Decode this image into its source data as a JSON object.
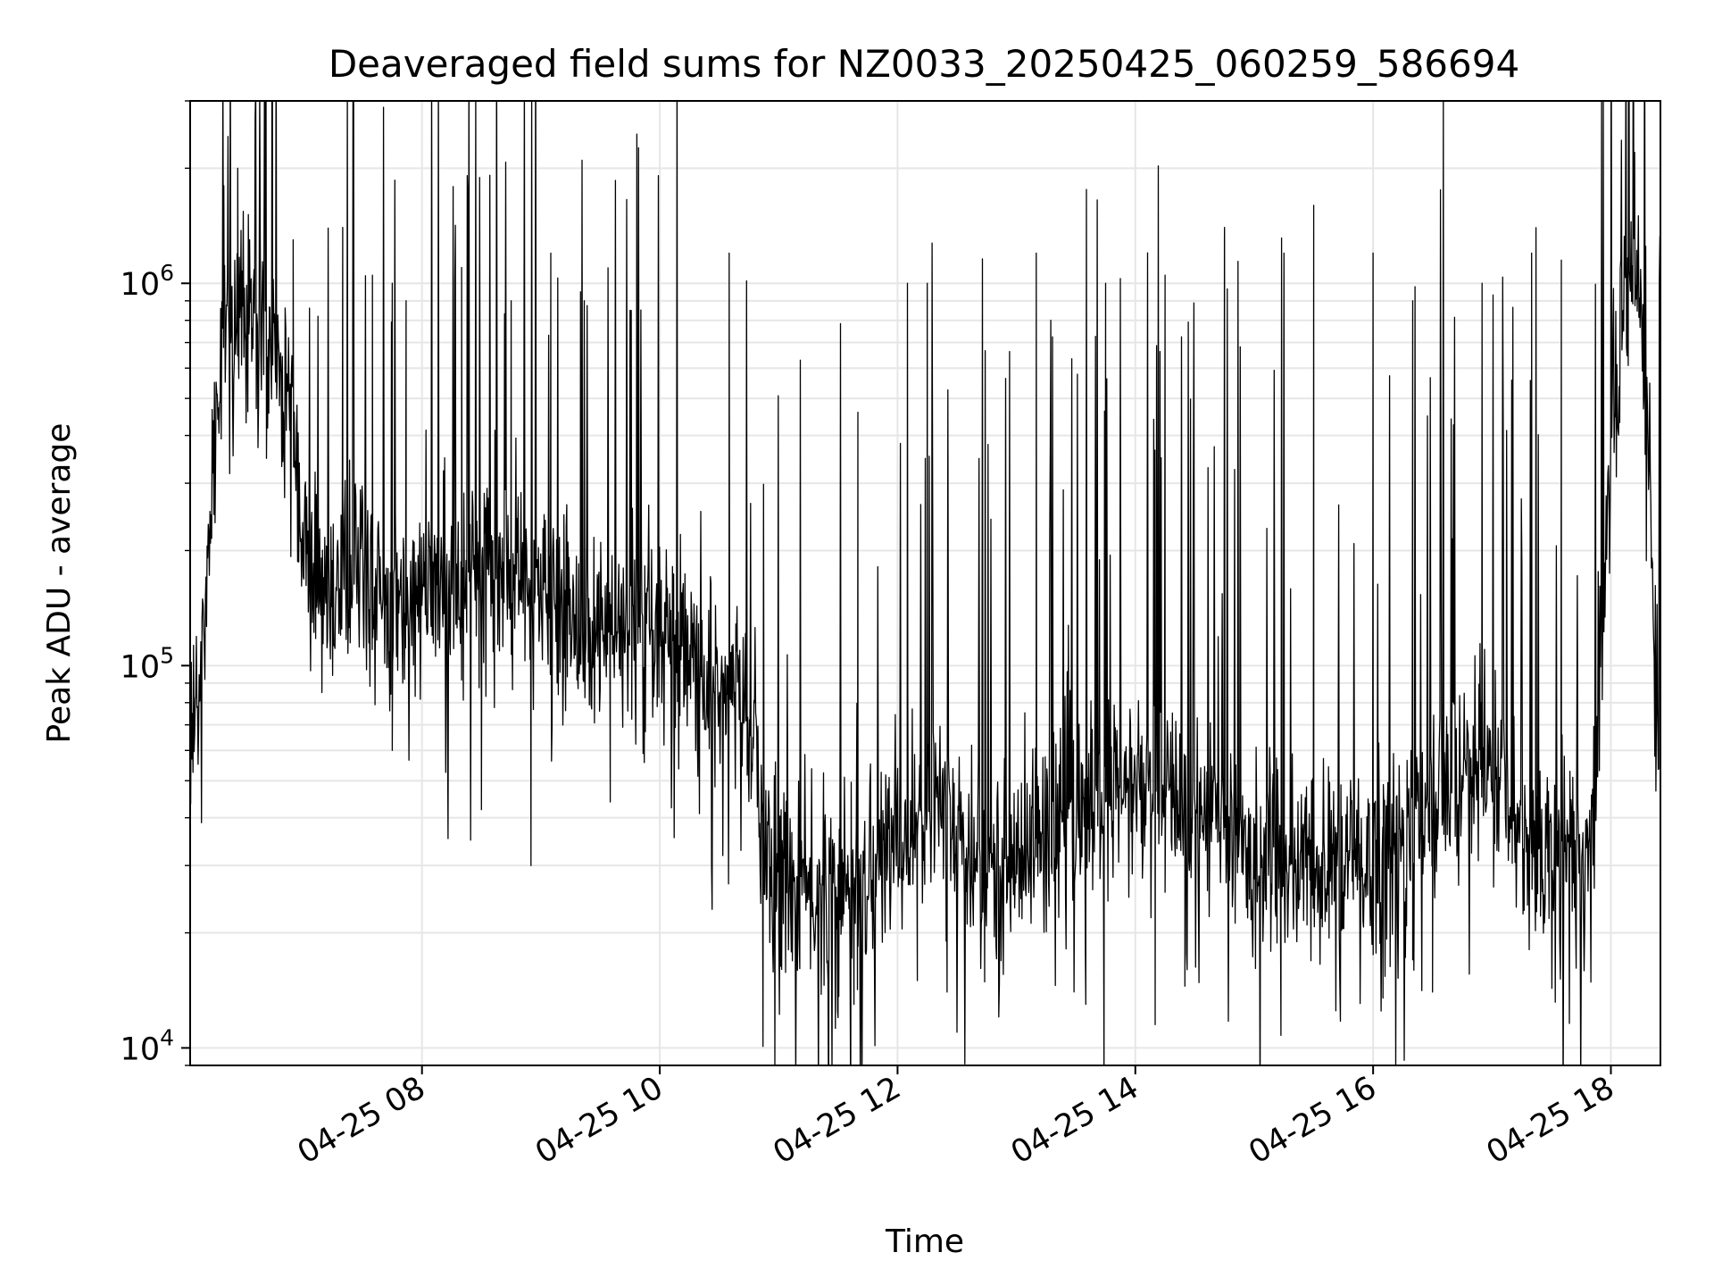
{
  "chart_data": {
    "type": "line",
    "title": "Deaveraged field sums for NZ0033_20250425_060259_586694",
    "xlabel": "Time",
    "ylabel": "Peak ADU - average",
    "x_start": "2025-04-25 06:03",
    "x_end": "2025-04-25 18:25",
    "xlim": [
      "2025-04-25 06:03",
      "2025-04-25 18:25"
    ],
    "ylim": [
      9000,
      3000000
    ],
    "yscale": "log",
    "grid": true,
    "line_color": "#000000",
    "x_ticks": [
      {
        "value": "2025-04-25 08:00",
        "label": "04-25 08"
      },
      {
        "value": "2025-04-25 10:00",
        "label": "04-25 10"
      },
      {
        "value": "2025-04-25 12:00",
        "label": "04-25 12"
      },
      {
        "value": "2025-04-25 14:00",
        "label": "04-25 14"
      },
      {
        "value": "2025-04-25 16:00",
        "label": "04-25 16"
      },
      {
        "value": "2025-04-25 18:00",
        "label": "04-25 18"
      }
    ],
    "y_ticks": [
      {
        "value": 10000,
        "base": "10",
        "exp": "4"
      },
      {
        "value": 100000,
        "base": "10",
        "exp": "5"
      },
      {
        "value": 1000000,
        "base": "10",
        "exp": "6"
      }
    ],
    "series": [
      {
        "trend": [
          [
            "2025-04-25 06:03",
            60000
          ],
          [
            "2025-04-25 06:08",
            90000
          ],
          [
            "2025-04-25 06:13",
            250000
          ],
          [
            "2025-04-25 06:20",
            800000
          ],
          [
            "2025-04-25 06:30",
            850000
          ],
          [
            "2025-04-25 06:40",
            650000
          ],
          [
            "2025-04-25 06:55",
            500000
          ],
          [
            "2025-04-25 07:00",
            180000
          ],
          [
            "2025-04-25 07:30",
            160000
          ],
          [
            "2025-04-25 08:00",
            150000
          ],
          [
            "2025-04-25 08:30",
            180000
          ],
          [
            "2025-04-25 09:00",
            150000
          ],
          [
            "2025-04-25 09:30",
            120000
          ],
          [
            "2025-04-25 10:00",
            110000
          ],
          [
            "2025-04-25 10:30",
            85000
          ],
          [
            "2025-04-25 10:48",
            80000
          ],
          [
            "2025-04-25 10:52",
            28000
          ],
          [
            "2025-04-25 11:30",
            24000
          ],
          [
            "2025-04-25 12:00",
            35000
          ],
          [
            "2025-04-25 12:25",
            45000
          ],
          [
            "2025-04-25 12:40",
            27000
          ],
          [
            "2025-04-25 13:00",
            32000
          ],
          [
            "2025-04-25 13:30",
            42000
          ],
          [
            "2025-04-25 14:00",
            48000
          ],
          [
            "2025-04-25 14:40",
            42000
          ],
          [
            "2025-04-25 15:00",
            30000
          ],
          [
            "2025-04-25 15:30",
            29000
          ],
          [
            "2025-04-25 16:00",
            30000
          ],
          [
            "2025-04-25 16:30",
            45000
          ],
          [
            "2025-04-25 17:00",
            55000
          ],
          [
            "2025-04-25 17:15",
            35000
          ],
          [
            "2025-04-25 17:50",
            32000
          ],
          [
            "2025-04-25 18:00",
            380000
          ],
          [
            "2025-04-25 18:10",
            1200000
          ],
          [
            "2025-04-25 18:15",
            900000
          ],
          [
            "2025-04-25 18:22",
            150000
          ],
          [
            "2025-04-25 18:25",
            45000
          ]
        ],
        "peaks": [
          [
            "2025-04-25 06:20",
            1800000
          ],
          [
            "2025-04-25 06:27",
            2000000
          ],
          [
            "2025-04-25 06:33",
            1300000
          ],
          [
            "2025-04-25 06:55",
            1300000
          ],
          [
            "2025-04-25 07:20",
            1400000
          ],
          [
            "2025-04-25 07:35",
            1050000
          ],
          [
            "2025-04-25 07:45",
            1000000
          ],
          [
            "2025-04-25 07:52",
            900000
          ],
          [
            "2025-04-25 08:05",
            1300000
          ],
          [
            "2025-04-25 08:20",
            1100000
          ],
          [
            "2025-04-25 08:45",
            900000
          ],
          [
            "2025-04-25 09:05",
            1200000
          ],
          [
            "2025-04-25 09:20",
            950000
          ],
          [
            "2025-04-25 09:45",
            850000
          ],
          [
            "2025-04-25 10:35",
            1200000
          ],
          [
            "2025-04-25 11:40",
            460000
          ],
          [
            "2025-04-25 12:05",
            1000000
          ],
          [
            "2025-04-25 12:15",
            1000000
          ],
          [
            "2025-04-25 13:10",
            1200000
          ],
          [
            "2025-04-25 13:45",
            1000000
          ],
          [
            "2025-04-25 14:15",
            1050000
          ],
          [
            "2025-04-25 14:45",
            1400000
          ],
          [
            "2025-04-25 15:15",
            1200000
          ],
          [
            "2025-04-25 15:30",
            1600000
          ],
          [
            "2025-04-25 16:00",
            1200000
          ],
          [
            "2025-04-25 16:20",
            900000
          ],
          [
            "2025-04-25 16:55",
            1000000
          ],
          [
            "2025-04-25 17:20",
            1200000
          ],
          [
            "2025-04-25 17:35",
            1150000
          ],
          [
            "2025-04-25 18:12",
            2200000
          ]
        ],
        "troughs": [
          [
            "2025-04-25 07:45",
            60000
          ],
          [
            "2025-04-25 08:30",
            42000
          ],
          [
            "2025-04-25 08:55",
            30000
          ],
          [
            "2025-04-25 09:35",
            44000
          ],
          [
            "2025-04-25 10:20",
            41000
          ],
          [
            "2025-04-25 11:30",
            12000
          ],
          [
            "2025-04-25 11:38",
            13000
          ],
          [
            "2025-04-25 12:10",
            15000
          ],
          [
            "2025-04-25 12:25",
            14000
          ],
          [
            "2025-04-25 13:35",
            13000
          ],
          [
            "2025-04-25 14:10",
            11500
          ],
          [
            "2025-04-25 14:25",
            14500
          ],
          [
            "2025-04-25 16:05",
            13500
          ],
          [
            "2025-04-25 16:30",
            14000
          ],
          [
            "2025-04-25 17:45",
            15500
          ]
        ]
      }
    ]
  }
}
